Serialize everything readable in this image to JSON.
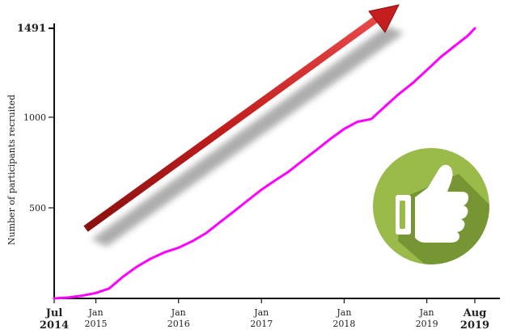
{
  "chart_data": {
    "type": "line",
    "title": "",
    "xlabel": "",
    "ylabel": "Number of participants recruited",
    "xlim": [
      "2014-07-01",
      "2019-09-01"
    ],
    "ylim": [
      0,
      1491
    ],
    "grid": false,
    "x_ticks": [
      {
        "date": "2014-07-01",
        "lines": [
          "Jul",
          "2014"
        ],
        "bold": true
      },
      {
        "date": "2015-01-01",
        "lines": [
          "Jan",
          "2015"
        ],
        "bold": false
      },
      {
        "date": "2016-01-01",
        "lines": [
          "Jan",
          "2016"
        ],
        "bold": false
      },
      {
        "date": "2017-01-01",
        "lines": [
          "Jan",
          "2017"
        ],
        "bold": false
      },
      {
        "date": "2018-01-01",
        "lines": [
          "Jan",
          "2018"
        ],
        "bold": false
      },
      {
        "date": "2019-01-01",
        "lines": [
          "Jan",
          "2019"
        ],
        "bold": false
      },
      {
        "date": "2019-08-01",
        "lines": [
          "Aug",
          "2019"
        ],
        "bold": true
      }
    ],
    "y_ticks": [
      {
        "value": 500,
        "label": "500",
        "bold": false
      },
      {
        "value": 1000,
        "label": "1000",
        "bold": false
      },
      {
        "value": 1491,
        "label": "1491",
        "bold": true
      }
    ],
    "series": [
      {
        "color": "#ff00ff",
        "points": [
          [
            "2014-07-01",
            0
          ],
          [
            "2014-09-01",
            5
          ],
          [
            "2014-11-01",
            15
          ],
          [
            "2015-01-01",
            30
          ],
          [
            "2015-03-01",
            55
          ],
          [
            "2015-05-01",
            120
          ],
          [
            "2015-07-01",
            175
          ],
          [
            "2015-09-01",
            220
          ],
          [
            "2015-11-01",
            255
          ],
          [
            "2016-01-01",
            280
          ],
          [
            "2016-03-01",
            315
          ],
          [
            "2016-05-01",
            360
          ],
          [
            "2016-07-01",
            420
          ],
          [
            "2016-09-01",
            480
          ],
          [
            "2016-11-01",
            540
          ],
          [
            "2017-01-01",
            600
          ],
          [
            "2017-03-01",
            650
          ],
          [
            "2017-05-01",
            700
          ],
          [
            "2017-07-01",
            760
          ],
          [
            "2017-09-01",
            820
          ],
          [
            "2017-11-01",
            880
          ],
          [
            "2018-01-01",
            935
          ],
          [
            "2018-03-01",
            975
          ],
          [
            "2018-05-01",
            990
          ],
          [
            "2018-07-01",
            1060
          ],
          [
            "2018-09-01",
            1130
          ],
          [
            "2018-11-01",
            1190
          ],
          [
            "2019-01-01",
            1260
          ],
          [
            "2019-03-01",
            1330
          ],
          [
            "2019-05-01",
            1390
          ],
          [
            "2019-07-01",
            1450
          ],
          [
            "2019-08-01",
            1491
          ]
        ]
      }
    ]
  },
  "decorations": {
    "arrow_color": "#c41e1e",
    "thumbs_badge_color": "#9aba4a",
    "thumbs_icon": "thumbs-up-icon"
  }
}
